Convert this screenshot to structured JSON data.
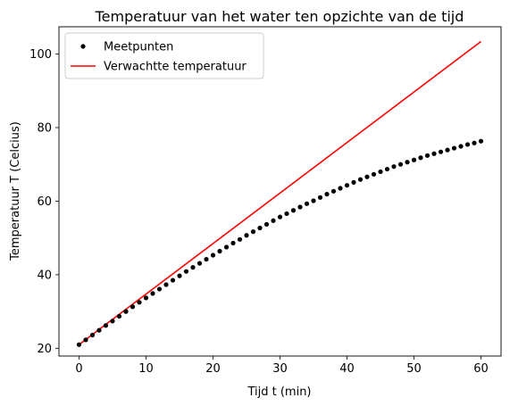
{
  "chart_data": {
    "type": "line",
    "title": "Temperatuur van het water ten opzichte van de tijd",
    "xlabel": "Tijd t (min)",
    "ylabel": "Temperatuur T (Celcius)",
    "xlim": [
      -3,
      63
    ],
    "ylim": [
      17.9,
      107.4
    ],
    "x_ticks": [
      0,
      10,
      20,
      30,
      40,
      50,
      60
    ],
    "y_ticks": [
      20,
      40,
      60,
      80,
      100
    ],
    "grid": false,
    "legend_position": "top-left",
    "series": [
      {
        "name": "Meetpunten",
        "kind": "scatter",
        "color": "#000000",
        "x": [
          0,
          1,
          2,
          3,
          4,
          5,
          6,
          7,
          8,
          9,
          10,
          11,
          12,
          13,
          14,
          15,
          16,
          17,
          18,
          19,
          20,
          21,
          22,
          23,
          24,
          25,
          26,
          27,
          28,
          29,
          30,
          31,
          32,
          33,
          34,
          35,
          36,
          37,
          38,
          39,
          40,
          41,
          42,
          43,
          44,
          45,
          46,
          47,
          48,
          49,
          50,
          51,
          52,
          53,
          54,
          55,
          56,
          57,
          58,
          59,
          60
        ],
        "y": [
          21.0,
          22.3,
          23.6,
          24.9,
          26.2,
          27.4,
          28.7,
          30.0,
          31.3,
          32.5,
          33.7,
          34.9,
          36.1,
          37.3,
          38.5,
          39.7,
          40.9,
          42.0,
          43.1,
          44.2,
          45.3,
          46.4,
          47.5,
          48.6,
          49.6,
          50.7,
          51.7,
          52.7,
          53.7,
          54.7,
          55.7,
          56.6,
          57.5,
          58.4,
          59.3,
          60.1,
          61.0,
          61.9,
          62.7,
          63.5,
          64.3,
          65.1,
          65.9,
          66.6,
          67.3,
          68.0,
          68.7,
          69.4,
          70.0,
          70.6,
          71.2,
          71.8,
          72.4,
          72.9,
          73.4,
          73.9,
          74.4,
          74.9,
          75.4,
          75.8,
          76.3
        ]
      },
      {
        "name": "Verwachtte temperatuur",
        "kind": "line",
        "color": "#ff0000",
        "x": [
          0,
          60
        ],
        "y": [
          21.0,
          103.4
        ]
      }
    ]
  }
}
